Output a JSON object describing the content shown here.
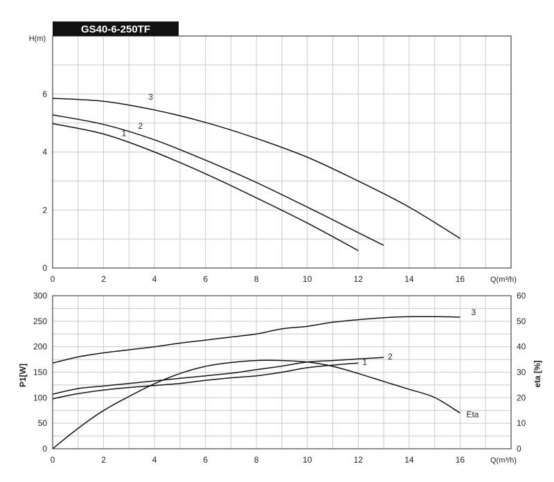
{
  "chart_data": [
    {
      "type": "line",
      "title": "GS40-6-250TF",
      "xlabel": "Q(m³/h)",
      "ylabel": "H(m)",
      "xlim": [
        0,
        18
      ],
      "ylim": [
        0,
        8
      ],
      "x_ticks": [
        0,
        2,
        4,
        6,
        8,
        10,
        12,
        14,
        16
      ],
      "y_ticks": [
        0,
        2,
        4,
        6
      ],
      "grid": true,
      "series": [
        {
          "name": "1",
          "x": [
            0,
            2,
            4,
            6,
            8,
            10,
            12
          ],
          "values": [
            4.98,
            4.62,
            4.0,
            3.25,
            2.42,
            1.55,
            0.6
          ]
        },
        {
          "name": "2",
          "x": [
            0,
            2,
            4,
            6,
            8,
            10,
            12,
            13
          ],
          "values": [
            5.28,
            4.95,
            4.42,
            3.72,
            2.95,
            2.1,
            1.22,
            0.78
          ]
        },
        {
          "name": "3",
          "x": [
            0,
            2,
            4,
            6,
            8,
            10,
            12,
            14,
            16
          ],
          "values": [
            5.85,
            5.75,
            5.45,
            5.02,
            4.47,
            3.82,
            3.0,
            2.1,
            1.02
          ]
        }
      ]
    },
    {
      "type": "line",
      "title": "",
      "xlabel": "Q(m³/h)",
      "ylabel": "P1[W]",
      "y2label": "eta [%]",
      "xlim": [
        0,
        18
      ],
      "ylim": [
        0,
        300
      ],
      "y2lim": [
        0,
        60
      ],
      "x_ticks": [
        0,
        2,
        4,
        6,
        8,
        10,
        12,
        14,
        16
      ],
      "y_ticks": [
        0,
        50,
        100,
        150,
        200,
        250,
        300
      ],
      "y2_ticks": [
        0,
        10,
        20,
        30,
        40,
        50,
        60
      ],
      "grid": true,
      "series": [
        {
          "name": "1",
          "axis": "left",
          "x": [
            0,
            1,
            2,
            3,
            4,
            5,
            6,
            7,
            8,
            9,
            10,
            11,
            12
          ],
          "values": [
            98,
            108,
            115,
            120,
            124,
            128,
            134,
            139,
            143,
            150,
            159,
            164,
            168
          ]
        },
        {
          "name": "2",
          "axis": "left",
          "x": [
            0,
            1,
            2,
            3,
            4,
            5,
            6,
            7,
            8,
            9,
            10,
            11,
            12,
            13
          ],
          "values": [
            107,
            118,
            123,
            128,
            133,
            138,
            143,
            148,
            155,
            162,
            170,
            173,
            176,
            179
          ]
        },
        {
          "name": "3",
          "axis": "left",
          "x": [
            0,
            1,
            2,
            3,
            4,
            5,
            6,
            7,
            8,
            9,
            10,
            11,
            12,
            13,
            14,
            15,
            16
          ],
          "values": [
            168,
            180,
            188,
            194,
            200,
            207,
            213,
            219,
            225,
            235,
            240,
            248,
            253,
            257,
            259,
            259,
            258
          ]
        },
        {
          "name": "Eta",
          "axis": "right",
          "x": [
            0,
            1,
            2,
            3,
            4,
            5,
            6,
            7,
            8,
            9,
            10,
            11,
            12,
            13,
            14,
            15,
            16
          ],
          "values": [
            0,
            8,
            15,
            20.5,
            25.5,
            29.5,
            32.3,
            33.8,
            34.6,
            34.6,
            34,
            32.3,
            29.5,
            26.4,
            23.3,
            20.1,
            14
          ]
        }
      ]
    }
  ]
}
